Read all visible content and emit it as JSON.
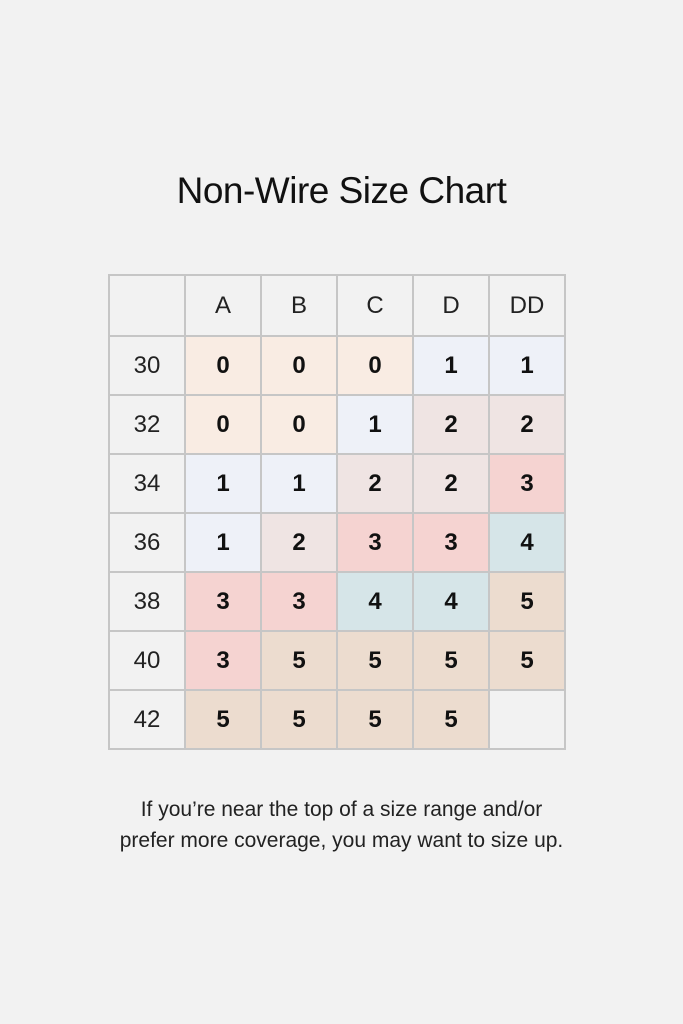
{
  "title": "Non-Wire Size Chart",
  "columns": [
    "A",
    "B",
    "C",
    "D",
    "DD"
  ],
  "rows": [
    {
      "band": "30",
      "values": [
        "0",
        "0",
        "0",
        "1",
        "1"
      ]
    },
    {
      "band": "32",
      "values": [
        "0",
        "0",
        "1",
        "2",
        "2"
      ]
    },
    {
      "band": "34",
      "values": [
        "1",
        "1",
        "2",
        "2",
        "3"
      ]
    },
    {
      "band": "36",
      "values": [
        "1",
        "2",
        "3",
        "3",
        "4"
      ]
    },
    {
      "band": "38",
      "values": [
        "3",
        "3",
        "4",
        "4",
        "5"
      ]
    },
    {
      "band": "40",
      "values": [
        "3",
        "5",
        "5",
        "5",
        "5"
      ]
    },
    {
      "band": "42",
      "values": [
        "5",
        "5",
        "5",
        "5",
        ""
      ]
    }
  ],
  "colors": {
    "0": "#f9ece3",
    "1": "#eef1f8",
    "2": "#efe4e3",
    "3": "#f5d3d1",
    "4": "#d6e5e8",
    "5": "#ecdccf",
    "empty": "#f2f2f2"
  },
  "note_line1": "If you’re near the top of a size range and/or",
  "note_line2": "prefer more coverage, you may want to size up."
}
